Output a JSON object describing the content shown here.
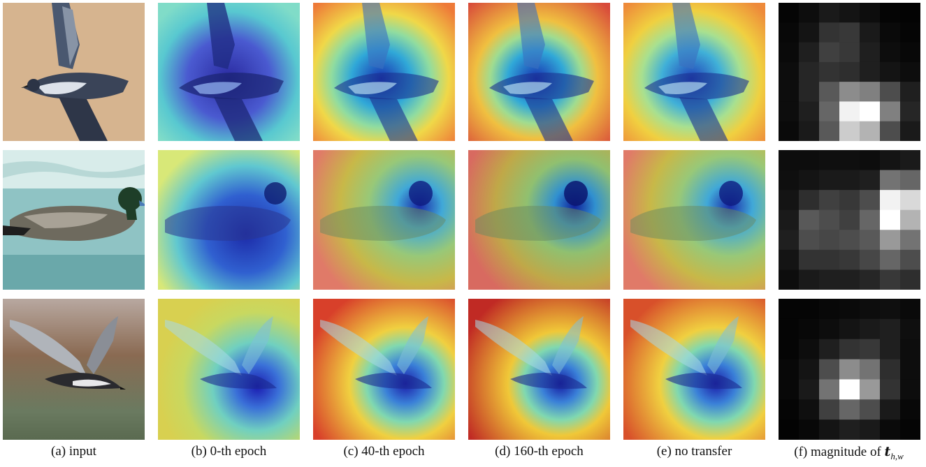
{
  "captions": {
    "a": "(a) input",
    "b": "(b) 0-th epoch",
    "c": "(c) 40-th epoch",
    "d": "(d) 160-th epoch",
    "e": "(e) no transfer",
    "f_prefix": "(f) magnitude of ",
    "f_symbol": "t",
    "f_subscript": "h,w"
  },
  "colors": {
    "background": "#ffffff",
    "input_row1_bg": "#d6b48f",
    "input_row2_bg": "#8fc3c4",
    "input_row3_bg": "#8a6a52",
    "heat_low": "#0a2aa8",
    "heat_mid": "#3ac8c8",
    "heat_high_yellow": "#f0d840",
    "heat_hot": "#e03a2a"
  },
  "magnitude_maps": {
    "row1": [
      [
        0.02,
        0.05,
        0.1,
        0.08,
        0.05,
        0.02,
        0.01
      ],
      [
        0.03,
        0.08,
        0.2,
        0.22,
        0.1,
        0.04,
        0.02
      ],
      [
        0.04,
        0.12,
        0.25,
        0.22,
        0.12,
        0.05,
        0.03
      ],
      [
        0.05,
        0.15,
        0.2,
        0.18,
        0.12,
        0.08,
        0.05
      ],
      [
        0.05,
        0.15,
        0.35,
        0.55,
        0.5,
        0.3,
        0.12
      ],
      [
        0.05,
        0.12,
        0.4,
        0.95,
        1.0,
        0.5,
        0.15
      ],
      [
        0.04,
        0.1,
        0.35,
        0.8,
        0.7,
        0.3,
        0.1
      ]
    ],
    "row2": [
      [
        0.05,
        0.05,
        0.06,
        0.06,
        0.05,
        0.08,
        0.1
      ],
      [
        0.06,
        0.08,
        0.1,
        0.1,
        0.12,
        0.45,
        0.4
      ],
      [
        0.08,
        0.18,
        0.25,
        0.22,
        0.3,
        0.95,
        0.85
      ],
      [
        0.1,
        0.35,
        0.3,
        0.25,
        0.4,
        1.0,
        0.7
      ],
      [
        0.12,
        0.3,
        0.28,
        0.3,
        0.35,
        0.6,
        0.45
      ],
      [
        0.08,
        0.2,
        0.2,
        0.22,
        0.28,
        0.4,
        0.3
      ],
      [
        0.05,
        0.1,
        0.12,
        0.12,
        0.15,
        0.22,
        0.18
      ]
    ],
    "row3": [
      [
        0.02,
        0.02,
        0.03,
        0.04,
        0.05,
        0.06,
        0.04
      ],
      [
        0.02,
        0.03,
        0.05,
        0.08,
        0.1,
        0.12,
        0.06
      ],
      [
        0.02,
        0.05,
        0.12,
        0.2,
        0.22,
        0.12,
        0.05
      ],
      [
        0.03,
        0.08,
        0.3,
        0.55,
        0.45,
        0.18,
        0.05
      ],
      [
        0.03,
        0.1,
        0.45,
        1.0,
        0.6,
        0.2,
        0.05
      ],
      [
        0.02,
        0.06,
        0.25,
        0.4,
        0.3,
        0.1,
        0.03
      ],
      [
        0.01,
        0.03,
        0.08,
        0.12,
        0.1,
        0.04,
        0.02
      ]
    ]
  }
}
